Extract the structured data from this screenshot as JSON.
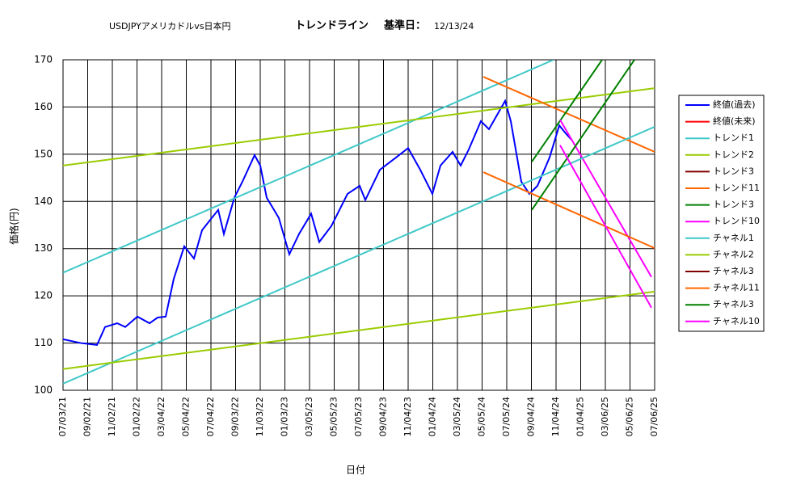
{
  "chart_data": {
    "type": "line",
    "title": "USDJPYアメリカドルvs日本円",
    "subtitle": "トレンドライン",
    "base_date_label": "基準日：",
    "base_date": "12/13/24",
    "x_label": "日付",
    "y_label": "価格(円)",
    "xlim": [
      "2021-07-03",
      "2025-07-06"
    ],
    "xticks": [
      {
        "value": "2021-07-03",
        "label": "07/03/21"
      },
      {
        "value": "2021-09-02",
        "label": "09/02/21"
      },
      {
        "value": "2021-11-02",
        "label": "11/02/21"
      },
      {
        "value": "2022-01-02",
        "label": "01/02/22"
      },
      {
        "value": "2022-03-04",
        "label": "03/04/22"
      },
      {
        "value": "2022-05-04",
        "label": "05/04/22"
      },
      {
        "value": "2022-07-04",
        "label": "07/04/22"
      },
      {
        "value": "2022-09-03",
        "label": "09/03/22"
      },
      {
        "value": "2022-11-03",
        "label": "11/03/22"
      },
      {
        "value": "2023-01-03",
        "label": "01/03/23"
      },
      {
        "value": "2023-03-05",
        "label": "03/05/23"
      },
      {
        "value": "2023-05-05",
        "label": "05/05/23"
      },
      {
        "value": "2023-07-05",
        "label": "07/05/23"
      },
      {
        "value": "2023-09-04",
        "label": "09/04/23"
      },
      {
        "value": "2023-11-04",
        "label": "11/04/23"
      },
      {
        "value": "2024-01-04",
        "label": "01/04/24"
      },
      {
        "value": "2024-03-05",
        "label": "03/05/24"
      },
      {
        "value": "2024-05-05",
        "label": "05/05/24"
      },
      {
        "value": "2024-07-05",
        "label": "07/05/24"
      },
      {
        "value": "2024-09-04",
        "label": "09/04/24"
      },
      {
        "value": "2024-11-04",
        "label": "11/04/24"
      },
      {
        "value": "2025-01-04",
        "label": "01/04/25"
      },
      {
        "value": "2025-03-06",
        "label": "03/06/25"
      },
      {
        "value": "2025-05-06",
        "label": "05/06/25"
      },
      {
        "value": "2025-07-06",
        "label": "07/06/25"
      }
    ],
    "ylim": [
      100,
      170
    ],
    "yticks": [
      100,
      110,
      120,
      130,
      140,
      150,
      160,
      170
    ],
    "grid": true,
    "legend": "right",
    "series": [
      {
        "name": "終値(過去)",
        "color": "#0000ff",
        "x": [
          "2021-07-03",
          "2021-08-16",
          "2021-09-25",
          "2021-10-15",
          "2021-11-14",
          "2021-12-04",
          "2022-01-03",
          "2022-02-02",
          "2022-02-22",
          "2022-03-14",
          "2022-04-03",
          "2022-04-29",
          "2022-05-23",
          "2022-06-12",
          "2022-07-06",
          "2022-07-22",
          "2022-08-05",
          "2022-08-31",
          "2022-09-20",
          "2022-10-20",
          "2022-11-03",
          "2022-11-19",
          "2022-12-19",
          "2023-01-14",
          "2023-02-07",
          "2023-03-09",
          "2023-03-29",
          "2023-04-28",
          "2023-06-07",
          "2023-07-07",
          "2023-07-21",
          "2023-08-26",
          "2023-10-05",
          "2023-11-04",
          "2023-12-04",
          "2024-01-03",
          "2024-01-23",
          "2024-02-22",
          "2024-03-13",
          "2024-04-02",
          "2024-05-02",
          "2024-05-22",
          "2024-07-01",
          "2024-07-15",
          "2024-08-10",
          "2024-08-30",
          "2024-09-19",
          "2024-10-19",
          "2024-11-12",
          "2024-11-28",
          "2024-12-13"
        ],
        "values": [
          110.8,
          110.0,
          109.6,
          113.4,
          114.2,
          113.4,
          115.6,
          114.2,
          115.4,
          115.6,
          123.6,
          130.5,
          127.9,
          133.9,
          136.5,
          138.2,
          133.1,
          140.8,
          144.2,
          149.8,
          147.6,
          140.8,
          136.5,
          128.8,
          133.1,
          137.4,
          131.4,
          134.8,
          141.6,
          143.3,
          140.3,
          146.7,
          149.3,
          151.3,
          146.7,
          141.6,
          147.6,
          150.5,
          147.6,
          151.0,
          157.0,
          155.3,
          161.3,
          157.0,
          144.2,
          141.6,
          143.3,
          149.3,
          156.1,
          154.4,
          153.0
        ]
      },
      {
        "name": "終値(未来)",
        "color": "#ff0000",
        "x": [],
        "values": []
      },
      {
        "name": "トレンド1",
        "color": "#40c8c8",
        "x": [
          "2021-07-03",
          "2024-10-29"
        ],
        "values": [
          124.9,
          170
        ]
      },
      {
        "name": "トレンド2",
        "color": "#99cc00",
        "x": [
          "2021-07-03",
          "2025-07-06"
        ],
        "values": [
          147.6,
          164.0
        ]
      },
      {
        "name": "トレンド3",
        "color": "#800000",
        "x": [],
        "values": []
      },
      {
        "name": "トレンド11",
        "color": "#ff6600",
        "x": [
          "2024-05-08",
          "2025-07-06"
        ],
        "values": [
          166.4,
          150.5
        ]
      },
      {
        "name": "トレンド3",
        "color": "#008000",
        "x": [
          "2024-09-05",
          "2025-02-26"
        ],
        "values": [
          148.4,
          170
        ]
      },
      {
        "name": "トレンド10",
        "color": "#ff00ff",
        "x": [
          "2024-11-14",
          "2025-06-28"
        ],
        "values": [
          157.3,
          124.0
        ]
      },
      {
        "name": "チャネル1",
        "color": "#40c8c8",
        "x": [
          "2021-07-03",
          "2025-07-06"
        ],
        "values": [
          101.4,
          155.8
        ]
      },
      {
        "name": "チャネル2",
        "color": "#99cc00",
        "x": [
          "2021-07-03",
          "2025-07-06"
        ],
        "values": [
          104.5,
          120.9
        ]
      },
      {
        "name": "チャネル3",
        "color": "#800000",
        "x": [],
        "values": []
      },
      {
        "name": "チャネル11",
        "color": "#ff6600",
        "x": [
          "2024-05-08",
          "2025-07-06"
        ],
        "values": [
          146.2,
          130.1
        ]
      },
      {
        "name": "チャネル3",
        "color": "#008000",
        "x": [
          "2024-09-05",
          "2025-05-17"
        ],
        "values": [
          138.2,
          170
        ]
      },
      {
        "name": "チャネル10",
        "color": "#ff00ff",
        "x": [
          "2024-11-14",
          "2025-06-28"
        ],
        "values": [
          151.9,
          117.5
        ]
      }
    ]
  }
}
